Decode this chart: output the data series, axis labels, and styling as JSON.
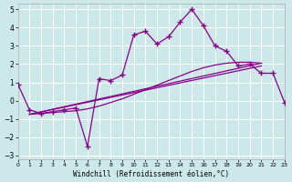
{
  "xlabel": "Windchill (Refroidissement éolien,°C)",
  "bg_color": "#cce8e8",
  "line_color": "#880088",
  "xlim": [
    0,
    23
  ],
  "ylim": [
    -3.2,
    5.3
  ],
  "yticks": [
    -3,
    -2,
    -1,
    0,
    1,
    2,
    3,
    4,
    5
  ],
  "xticks": [
    0,
    1,
    2,
    3,
    4,
    5,
    6,
    7,
    8,
    9,
    10,
    11,
    12,
    13,
    14,
    15,
    16,
    17,
    18,
    19,
    20,
    21,
    22,
    23
  ],
  "main_x": [
    0,
    1,
    2,
    3,
    4,
    5,
    6,
    7,
    8,
    9,
    10,
    11,
    12,
    13,
    14,
    15,
    16,
    17,
    18,
    19,
    20,
    21,
    22,
    23
  ],
  "main_y": [
    0.9,
    -0.5,
    -0.7,
    -0.6,
    -0.5,
    -0.4,
    -2.5,
    1.2,
    1.1,
    1.4,
    3.6,
    3.8,
    3.1,
    3.5,
    4.3,
    5.0,
    4.1,
    3.0,
    2.7,
    1.9,
    2.0,
    1.5,
    1.5,
    -0.1
  ],
  "curve_x": [
    1,
    2,
    3,
    4,
    5,
    6,
    7,
    8,
    9,
    10,
    11,
    12,
    13,
    14,
    15,
    16,
    17,
    18,
    19,
    20,
    21
  ],
  "curve_y": [
    -0.75,
    -0.7,
    -0.65,
    -0.6,
    -0.55,
    -0.45,
    -0.3,
    -0.1,
    0.1,
    0.35,
    0.6,
    0.85,
    1.1,
    1.35,
    1.6,
    1.8,
    1.95,
    2.05,
    2.1,
    2.1,
    2.05
  ],
  "line1_x": [
    1,
    21
  ],
  "line1_y": [
    -0.75,
    2.05
  ],
  "line2_x": [
    1,
    21
  ],
  "line2_y": [
    -0.75,
    1.9
  ]
}
